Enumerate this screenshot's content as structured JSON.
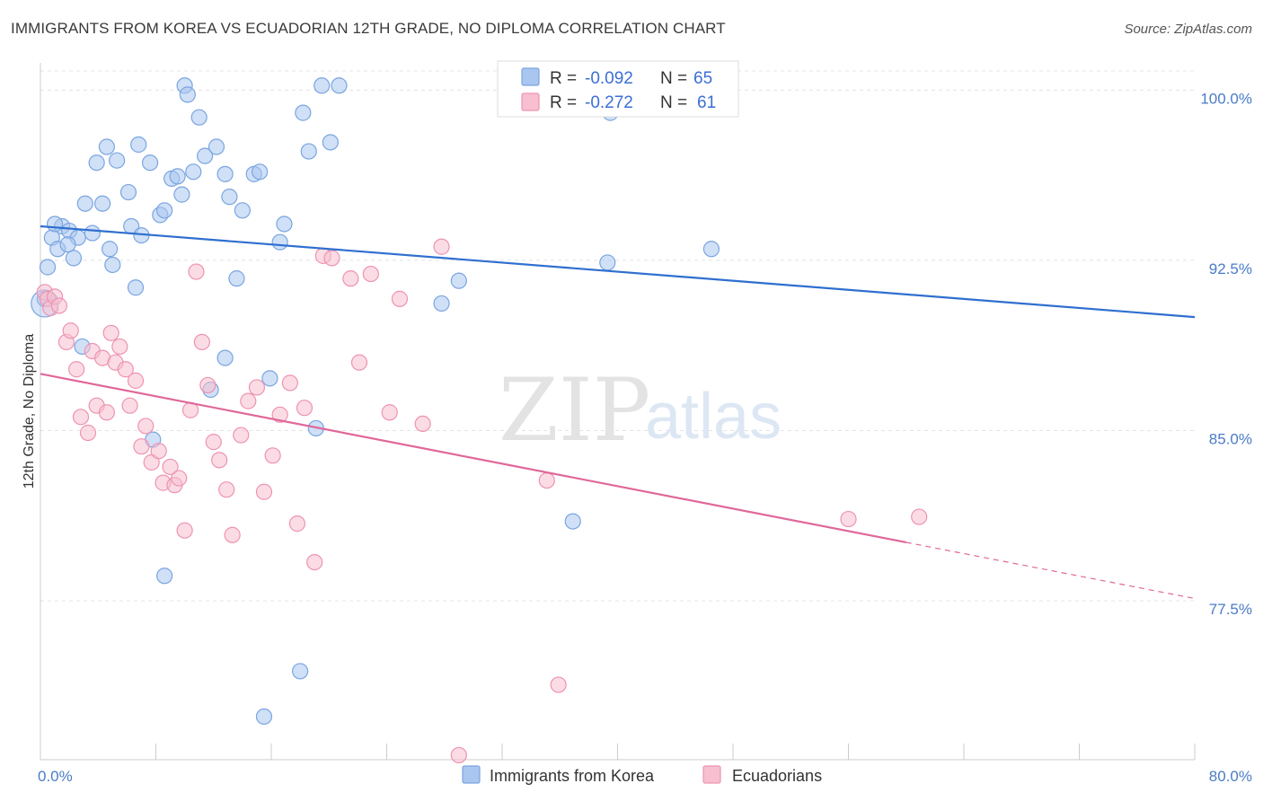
{
  "title": "IMMIGRANTS FROM KOREA VS ECUADORIAN 12TH GRADE, NO DIPLOMA CORRELATION CHART",
  "source": "Source: ZipAtlas.com",
  "watermark": {
    "zip": "ZIP",
    "atlas": "atlas"
  },
  "legend": {
    "rows": [
      {
        "r_label": "R =",
        "r_value": "-0.092",
        "n_label": "N =",
        "n_value": "65"
      },
      {
        "r_label": "R =",
        "r_value": "-0.272",
        "n_label": "N =",
        "n_value": "61"
      }
    ]
  },
  "bottom_legend": [
    "Immigrants from Korea",
    "Ecuadorians"
  ],
  "colors": {
    "korea_fill": "#a9c6f0",
    "korea_stroke": "#7aa5e0",
    "korea_line": "#2f6fcf",
    "ecuador_fill": "#f7bfd0",
    "ecuador_stroke": "#ee93b1",
    "ecuador_line": "#e0679a",
    "axis_label": "#4a7cc7"
  },
  "chart_data": {
    "type": "scatter",
    "title": "IMMIGRANTS FROM KOREA VS ECUADORIAN 12TH GRADE, NO DIPLOMA CORRELATION CHART",
    "xlabel": "",
    "ylabel": "12th Grade, No Diploma",
    "xlim": [
      0,
      80
    ],
    "ylim": [
      70.5,
      101.2
    ],
    "x_tick_labels": [
      "0.0%",
      "80.0%"
    ],
    "y_ticks": [
      77.5,
      85.0,
      92.5,
      100.0
    ],
    "y_tick_labels": [
      "77.5%",
      "85.0%",
      "92.5%",
      "100.0%"
    ],
    "grid": true,
    "legend_position": "top-center",
    "series": [
      {
        "name": "Immigrants from Korea",
        "x": [
          0.3,
          0.5,
          0.8,
          1.2,
          1.5,
          2.0,
          2.3,
          2.6,
          2.9,
          3.1,
          3.6,
          3.9,
          4.3,
          4.6,
          4.8,
          5.0,
          5.3,
          6.1,
          6.3,
          6.8,
          7.0,
          7.6,
          7.8,
          8.3,
          8.6,
          9.1,
          9.5,
          9.8,
          10.0,
          10.2,
          10.6,
          11.0,
          11.4,
          11.8,
          12.2,
          12.8,
          13.1,
          13.6,
          14.0,
          14.8,
          15.2,
          15.5,
          15.9,
          16.6,
          16.9,
          18.0,
          18.2,
          18.6,
          19.1,
          19.5,
          20.1,
          20.7,
          27.8,
          29.0,
          36.9,
          39.3,
          39.5,
          42.9,
          46.5,
          47.2,
          1.0,
          1.9,
          6.6,
          8.6,
          12.8
        ],
        "y": [
          90.8,
          92.2,
          93.5,
          93.0,
          94.0,
          93.8,
          92.6,
          93.5,
          88.7,
          95.0,
          93.7,
          96.8,
          95.0,
          97.5,
          93.0,
          92.3,
          96.9,
          95.5,
          94.0,
          97.6,
          93.6,
          96.8,
          84.6,
          94.5,
          94.7,
          96.1,
          96.2,
          95.4,
          100.2,
          99.8,
          96.4,
          98.8,
          97.1,
          86.8,
          97.5,
          96.3,
          95.3,
          91.7,
          94.7,
          96.3,
          96.4,
          72.4,
          87.3,
          93.3,
          94.1,
          74.4,
          99.0,
          97.3,
          85.1,
          100.2,
          97.7,
          100.2,
          90.6,
          91.6,
          81.0,
          92.4,
          99.0,
          100.1,
          93.0,
          100.2,
          94.1,
          93.2,
          91.3,
          78.6,
          88.2
        ]
      },
      {
        "name": "Ecuadorians",
        "x": [
          0.3,
          0.5,
          0.7,
          1.0,
          1.3,
          1.8,
          2.1,
          2.5,
          2.8,
          3.3,
          3.6,
          3.9,
          4.3,
          4.6,
          4.9,
          5.2,
          5.5,
          5.9,
          6.2,
          6.6,
          7.0,
          7.3,
          7.7,
          8.2,
          8.5,
          9.0,
          9.3,
          9.6,
          10.0,
          10.4,
          10.8,
          11.2,
          11.6,
          12.0,
          12.4,
          12.9,
          13.3,
          13.9,
          14.4,
          15.0,
          15.5,
          16.1,
          16.6,
          17.3,
          17.8,
          18.3,
          19.0,
          19.6,
          20.2,
          21.5,
          22.1,
          22.9,
          24.2,
          24.9,
          26.5,
          27.8,
          29.0,
          35.1,
          35.9,
          56.0,
          60.9
        ],
        "y": [
          91.1,
          90.8,
          90.4,
          90.9,
          90.5,
          88.9,
          89.4,
          87.7,
          85.6,
          84.9,
          88.5,
          86.1,
          88.2,
          85.8,
          89.3,
          88.0,
          88.7,
          87.7,
          86.1,
          87.2,
          84.3,
          85.2,
          83.6,
          84.1,
          82.7,
          83.4,
          82.6,
          82.9,
          80.6,
          85.9,
          92.0,
          88.9,
          87.0,
          84.5,
          83.7,
          82.4,
          80.4,
          84.8,
          86.3,
          86.9,
          82.3,
          83.9,
          85.7,
          87.1,
          80.9,
          86.0,
          79.2,
          92.7,
          92.6,
          91.7,
          88.0,
          91.9,
          85.8,
          90.8,
          85.3,
          93.1,
          70.7,
          82.8,
          73.8,
          81.1,
          81.2
        ]
      }
    ],
    "trend_lines": [
      {
        "name": "Immigrants from Korea",
        "x": [
          0,
          80
        ],
        "y": [
          94.0,
          90.0
        ],
        "dashed_from_x": null
      },
      {
        "name": "Ecuadorians",
        "x": [
          0,
          80
        ],
        "y": [
          87.5,
          77.6
        ],
        "dashed_from_x": 60.0
      }
    ]
  }
}
